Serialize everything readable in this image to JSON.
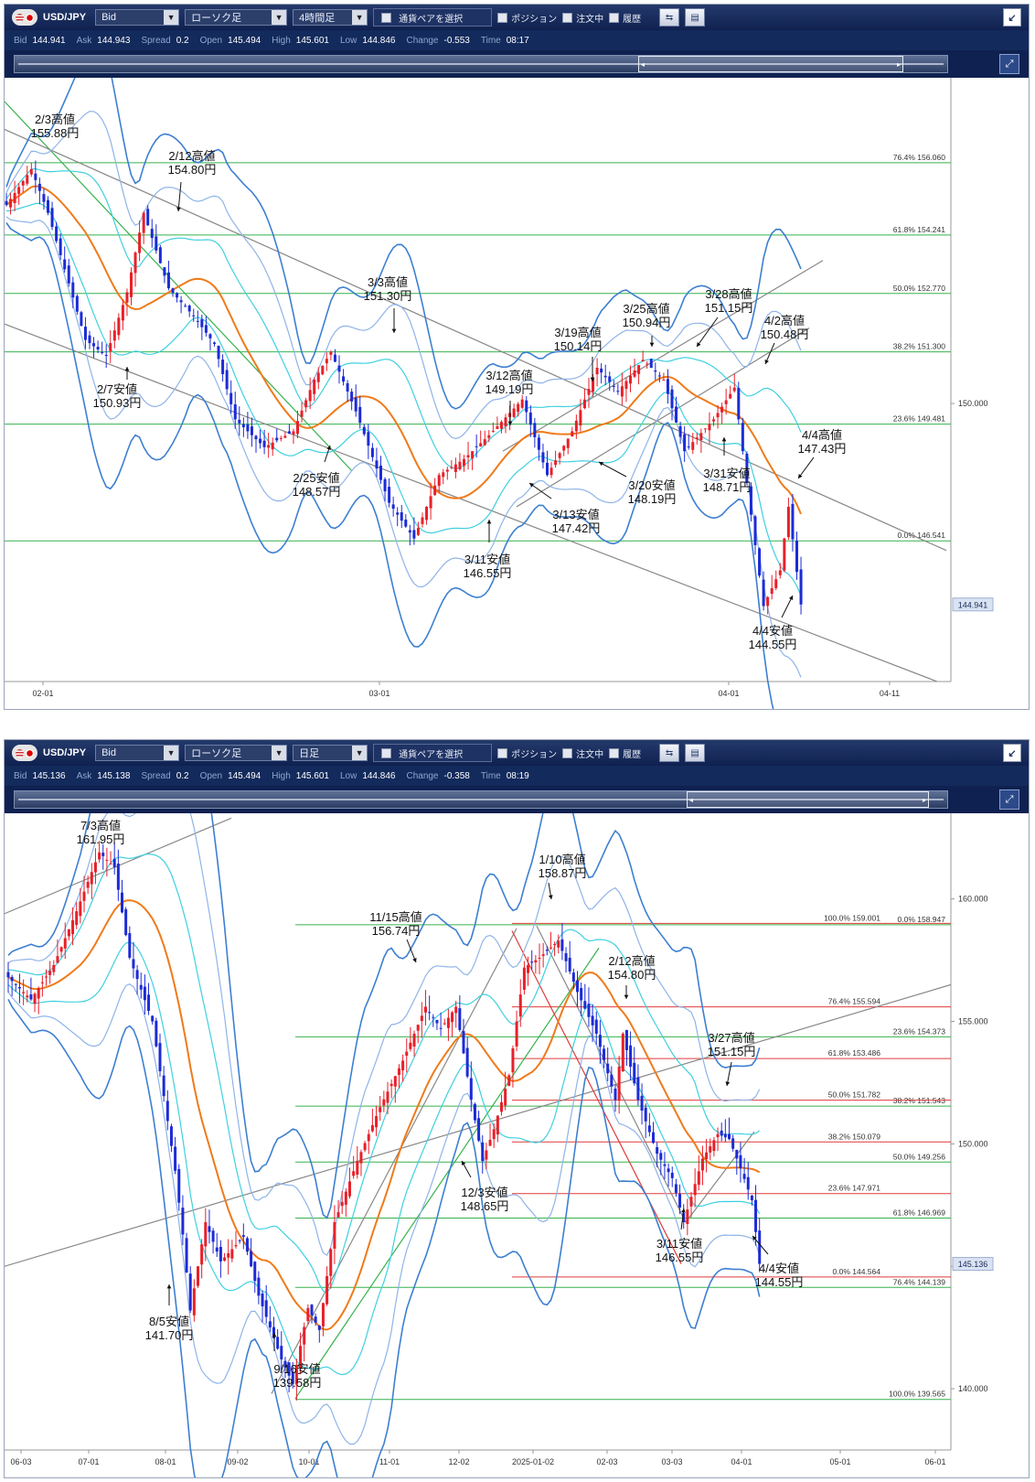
{
  "top_panel": {
    "toolbar": {
      "symbol": "USD/JPY",
      "price_type": "Bid",
      "chart_type": "ローソク足",
      "timeframe": "4時間足",
      "pair_select_label": "通貨ペアを選択",
      "position_label": "ポジション",
      "orders_label": "注文中",
      "history_label": "履歴"
    },
    "quote": {
      "bid_label": "Bid",
      "bid": "144.941",
      "ask_label": "Ask",
      "ask": "144.943",
      "spread_label": "Spread",
      "spread": "0.2",
      "open_label": "Open",
      "open": "145.494",
      "high_label": "High",
      "high": "145.601",
      "low_label": "Low",
      "low": "144.846",
      "change_label": "Change",
      "change": "-0.553",
      "time_label": "Time",
      "time": "08:17"
    },
    "current_price_tag": "144.941"
  },
  "bottom_panel": {
    "toolbar": {
      "symbol": "USD/JPY",
      "price_type": "Bid",
      "chart_type": "ローソク足",
      "timeframe": "日足",
      "pair_select_label": "通貨ペアを選択",
      "position_label": "ポジション",
      "orders_label": "注文中",
      "history_label": "履歴"
    },
    "quote": {
      "bid_label": "Bid",
      "bid": "145.136",
      "ask_label": "Ask",
      "ask": "145.138",
      "spread_label": "Spread",
      "spread": "0.2",
      "open_label": "Open",
      "open": "145.494",
      "high_label": "High",
      "high": "145.601",
      "low_label": "Low",
      "low": "144.846",
      "change_label": "Change",
      "change": "-0.358",
      "time_label": "Time",
      "time": "08:19"
    },
    "current_price_tag": "145.136"
  },
  "chart_data": [
    {
      "type": "candlestick",
      "timeframe": "4時間足",
      "x_ticks": [
        "02-01",
        "03-01",
        "04-01",
        "04-11"
      ],
      "y_ticks": [
        150.0
      ],
      "ylim": [
        143.0,
        158.2
      ],
      "colors": {
        "up": "#e8202a",
        "down": "#1c2bd6",
        "ma": "#f07a1a",
        "band_outer": "#3d7fd1",
        "band_mid": "#8fb4e8",
        "band_inner": "#3fd0e0",
        "fib": "#37b24d",
        "trend": "#888888"
      },
      "fibonacci": [
        {
          "label": "76.4%",
          "price": 156.06
        },
        {
          "label": "61.8%",
          "price": 154.241
        },
        {
          "label": "50.0%",
          "price": 152.77
        },
        {
          "label": "38.2%",
          "price": 151.3
        },
        {
          "label": "23.6%",
          "price": 149.481
        },
        {
          "label": "0.0%",
          "price": 146.541
        }
      ],
      "annotations": [
        {
          "date": "2/3",
          "kind": "高値",
          "price": "155.88円"
        },
        {
          "date": "2/7",
          "kind": "安値",
          "price": "150.93円"
        },
        {
          "date": "2/12",
          "kind": "高値",
          "price": "154.80円"
        },
        {
          "date": "2/25",
          "kind": "安値",
          "price": "148.57円"
        },
        {
          "date": "3/3",
          "kind": "高値",
          "price": "151.30円"
        },
        {
          "date": "3/11",
          "kind": "安値",
          "price": "146.55円"
        },
        {
          "date": "3/12",
          "kind": "高値",
          "price": "149.19円"
        },
        {
          "date": "3/13",
          "kind": "安値",
          "price": "147.42円"
        },
        {
          "date": "3/19",
          "kind": "高値",
          "price": "150.14円"
        },
        {
          "date": "3/20",
          "kind": "安値",
          "price": "148.19円"
        },
        {
          "date": "3/25",
          "kind": "高値",
          "price": "150.94円"
        },
        {
          "date": "3/28",
          "kind": "高値",
          "price": "151.15円"
        },
        {
          "date": "3/31",
          "kind": "安値",
          "price": "148.71円"
        },
        {
          "date": "4/2",
          "kind": "高値",
          "price": "150.48円"
        },
        {
          "date": "4/4",
          "kind": "高値",
          "price": "147.43円"
        },
        {
          "date": "4/4",
          "kind": "安値",
          "price": "144.55円"
        }
      ],
      "anchors": [
        {
          "t": 0,
          "p": 155.0
        },
        {
          "t": 6,
          "p": 155.9
        },
        {
          "t": 10,
          "p": 154.8
        },
        {
          "t": 19,
          "p": 151.6
        },
        {
          "t": 24,
          "p": 151.2
        },
        {
          "t": 29,
          "p": 152.8
        },
        {
          "t": 33,
          "p": 154.8
        },
        {
          "t": 39,
          "p": 152.9
        },
        {
          "t": 45,
          "p": 152.2
        },
        {
          "t": 50,
          "p": 151.5
        },
        {
          "t": 55,
          "p": 149.6
        },
        {
          "t": 62,
          "p": 148.9
        },
        {
          "t": 69,
          "p": 149.3
        },
        {
          "t": 74,
          "p": 150.6
        },
        {
          "t": 78,
          "p": 151.3
        },
        {
          "t": 84,
          "p": 149.8
        },
        {
          "t": 92,
          "p": 147.5
        },
        {
          "t": 98,
          "p": 146.6
        },
        {
          "t": 104,
          "p": 148.2
        },
        {
          "t": 110,
          "p": 148.6
        },
        {
          "t": 116,
          "p": 149.2
        },
        {
          "t": 124,
          "p": 150.1
        },
        {
          "t": 130,
          "p": 148.2
        },
        {
          "t": 136,
          "p": 149.3
        },
        {
          "t": 142,
          "p": 150.9
        },
        {
          "t": 147,
          "p": 150.3
        },
        {
          "t": 153,
          "p": 151.1
        },
        {
          "t": 158,
          "p": 150.6
        },
        {
          "t": 163,
          "p": 148.8
        },
        {
          "t": 170,
          "p": 149.6
        },
        {
          "t": 175,
          "p": 150.4
        },
        {
          "t": 179,
          "p": 147.2
        },
        {
          "t": 182,
          "p": 144.9
        },
        {
          "t": 186,
          "p": 145.8
        },
        {
          "t": 188,
          "p": 147.4
        },
        {
          "t": 191,
          "p": 144.94
        }
      ]
    },
    {
      "type": "candlestick",
      "timeframe": "日足",
      "x_ticks": [
        "06-03",
        "07-01",
        "08-01",
        "09-02",
        "10-01",
        "11-01",
        "12-02",
        "2025-01-02",
        "02-03",
        "03-03",
        "04-01",
        "05-01",
        "06-01"
      ],
      "y_ticks": [
        140.0,
        145.0,
        150.0,
        155.0,
        160.0
      ],
      "ylim": [
        137.5,
        163.5
      ],
      "colors": {
        "up": "#e8202a",
        "down": "#1c2bd6",
        "ma": "#f07a1a",
        "band_outer": "#3d7fd1",
        "band_mid": "#8fb4e8",
        "band_inner": "#3fd0e0",
        "fib_green": "#37b24d",
        "fib_red": "#e03a3a",
        "trend": "#888888"
      },
      "fibonacci_green": [
        {
          "label": "0.0%",
          "price": 158.947
        },
        {
          "label": "23.6%",
          "price": 154.373
        },
        {
          "label": "38.2%",
          "price": 151.543
        },
        {
          "label": "50.0%",
          "price": 149.256
        },
        {
          "label": "61.8%",
          "price": 146.969
        },
        {
          "label": "76.4%",
          "price": 144.139
        },
        {
          "label": "100.0%",
          "price": 139.565
        }
      ],
      "fibonacci_red": [
        {
          "label": "100.0%",
          "price": 159.001
        },
        {
          "label": "76.4%",
          "price": 155.594
        },
        {
          "label": "61.8%",
          "price": 153.486
        },
        {
          "label": "50.0%",
          "price": 151.782
        },
        {
          "label": "38.2%",
          "price": 150.079
        },
        {
          "label": "23.6%",
          "price": 147.971
        },
        {
          "label": "0.0%",
          "price": 144.564
        }
      ],
      "annotations": [
        {
          "date": "7/3",
          "kind": "高値",
          "price": "161.95円"
        },
        {
          "date": "8/5",
          "kind": "安値",
          "price": "141.70円"
        },
        {
          "date": "9/16",
          "kind": "安値",
          "price": "139.58円"
        },
        {
          "date": "11/15",
          "kind": "高値",
          "price": "156.74円"
        },
        {
          "date": "12/3",
          "kind": "安値",
          "price": "148.65円"
        },
        {
          "date": "1/10",
          "kind": "高値",
          "price": "158.87円"
        },
        {
          "date": "2/12",
          "kind": "高値",
          "price": "154.80円"
        },
        {
          "date": "3/11",
          "kind": "安値",
          "price": "146.55円"
        },
        {
          "date": "3/27",
          "kind": "高値",
          "price": "151.15円"
        },
        {
          "date": "4/4",
          "kind": "安値",
          "price": "144.55円"
        }
      ],
      "anchors": [
        {
          "t": 0,
          "p": 156.8
        },
        {
          "t": 6,
          "p": 155.9
        },
        {
          "t": 12,
          "p": 157.3
        },
        {
          "t": 18,
          "p": 159.5
        },
        {
          "t": 24,
          "p": 161.9
        },
        {
          "t": 28,
          "p": 161.3
        },
        {
          "t": 32,
          "p": 157.6
        },
        {
          "t": 38,
          "p": 155.0
        },
        {
          "t": 44,
          "p": 148.9
        },
        {
          "t": 46,
          "p": 146.3
        },
        {
          "t": 48,
          "p": 143.2
        },
        {
          "t": 52,
          "p": 146.8
        },
        {
          "t": 56,
          "p": 145.2
        },
        {
          "t": 62,
          "p": 146.2
        },
        {
          "t": 66,
          "p": 143.8
        },
        {
          "t": 72,
          "p": 141.2
        },
        {
          "t": 75,
          "p": 140.2
        },
        {
          "t": 79,
          "p": 143.3
        },
        {
          "t": 82,
          "p": 142.4
        },
        {
          "t": 86,
          "p": 146.8
        },
        {
          "t": 92,
          "p": 149.3
        },
        {
          "t": 98,
          "p": 151.5
        },
        {
          "t": 104,
          "p": 153.4
        },
        {
          "t": 110,
          "p": 155.6
        },
        {
          "t": 114,
          "p": 154.7
        },
        {
          "t": 118,
          "p": 155.6
        },
        {
          "t": 122,
          "p": 151.8
        },
        {
          "t": 125,
          "p": 149.3
        },
        {
          "t": 128,
          "p": 150.6
        },
        {
          "t": 132,
          "p": 152.8
        },
        {
          "t": 136,
          "p": 157.2
        },
        {
          "t": 140,
          "p": 157.6
        },
        {
          "t": 145,
          "p": 158.3
        },
        {
          "t": 150,
          "p": 156.2
        },
        {
          "t": 155,
          "p": 154.5
        },
        {
          "t": 160,
          "p": 151.8
        },
        {
          "t": 162,
          "p": 154.5
        },
        {
          "t": 166,
          "p": 151.8
        },
        {
          "t": 171,
          "p": 149.6
        },
        {
          "t": 175,
          "p": 148.6
        },
        {
          "t": 178,
          "p": 146.8
        },
        {
          "t": 183,
          "p": 149.4
        },
        {
          "t": 187,
          "p": 150.4
        },
        {
          "t": 190,
          "p": 150.2
        },
        {
          "t": 193,
          "p": 149.0
        },
        {
          "t": 196,
          "p": 147.7
        },
        {
          "t": 198,
          "p": 145.1
        }
      ]
    }
  ]
}
